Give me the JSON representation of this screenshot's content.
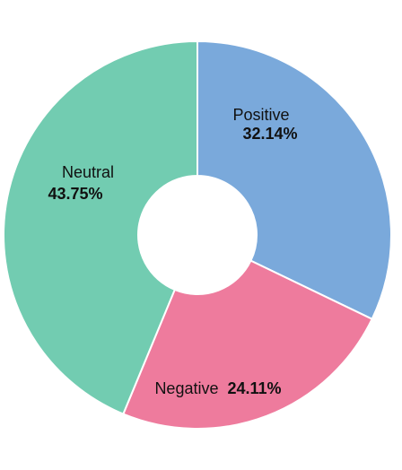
{
  "chart_data": {
    "type": "pie",
    "variant": "donut",
    "title": "",
    "legend": "none",
    "slices": [
      {
        "label": "Positive",
        "value": 32.14,
        "display": "32.14%",
        "color": "#7aa9db"
      },
      {
        "label": "Negative",
        "value": 24.11,
        "display": "24.11%",
        "color": "#ee7b9d"
      },
      {
        "label": "Neutral",
        "value": 43.75,
        "display": "43.75%",
        "color": "#72ccb1"
      }
    ]
  }
}
